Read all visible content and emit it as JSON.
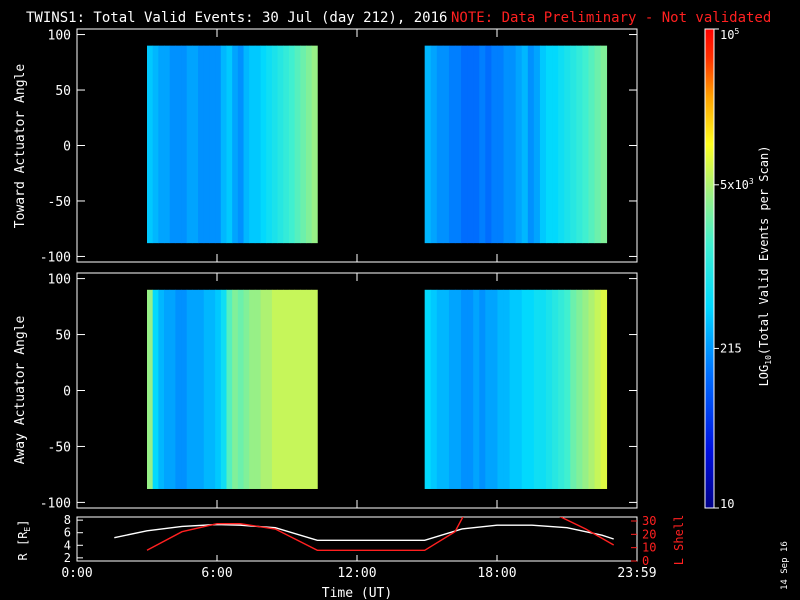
{
  "title": "TWINS1: Total Valid Events: 30 Jul (day 212), 2016",
  "note": "NOTE: Data Preliminary - Not validated",
  "date_stamp": "14 Sep 16",
  "colors": {
    "title": "#ffffff",
    "note": "#ff2020",
    "lshell": "#ff2020",
    "rdist": "#ffffff",
    "frame": "#ffffff"
  },
  "chart_data": [
    {
      "type": "heatmap",
      "ylabel": "Toward Actuator Angle",
      "ylim": [
        -105,
        105
      ],
      "yticks": [
        "100",
        "50",
        "0",
        "-50",
        "-100"
      ],
      "ytick_values": [
        100,
        50,
        0,
        -50,
        -100
      ],
      "x_range_hours": [
        0,
        24
      ],
      "angle_range": [
        -88,
        90
      ],
      "blocks_hours": [
        [
          3.0,
          10.3
        ],
        [
          14.9,
          22.7
        ]
      ],
      "scale": "log",
      "mean_log10_counts": [
        [
          2.6,
          2.5,
          2.4,
          2.4,
          2.3,
          2.3,
          2.3,
          2.4,
          2.4,
          2.3,
          2.3,
          2.3,
          2.3,
          2.5,
          2.6,
          2.4,
          2.3,
          2.5,
          2.6,
          2.6,
          2.7,
          2.8,
          2.9,
          3.0,
          3.1,
          3.2,
          3.3,
          3.4,
          3.5,
          3.6
        ],
        [
          2.5,
          2.4,
          2.3,
          2.3,
          2.2,
          2.2,
          2.1,
          2.1,
          2.1,
          2.2,
          2.1,
          2.2,
          2.2,
          2.3,
          2.3,
          2.4,
          2.5,
          2.3,
          2.4,
          2.6,
          2.7,
          2.7,
          2.8,
          2.9,
          3.0,
          3.1,
          3.2,
          3.3,
          3.4,
          3.5
        ]
      ]
    },
    {
      "type": "heatmap",
      "ylabel": "Away Actuator Angle",
      "ylim": [
        -105,
        105
      ],
      "yticks": [
        "100",
        "50",
        "0",
        "-50",
        "-100"
      ],
      "ytick_values": [
        100,
        50,
        0,
        -50,
        -100
      ],
      "x_range_hours": [
        0,
        24
      ],
      "angle_range": [
        -88,
        90
      ],
      "blocks_hours": [
        [
          3.0,
          10.3
        ],
        [
          14.9,
          22.7
        ]
      ],
      "scale": "log",
      "mean_log10_counts": [
        [
          3.6,
          2.7,
          2.5,
          2.4,
          2.4,
          2.3,
          2.3,
          2.4,
          2.4,
          2.4,
          2.5,
          2.5,
          2.6,
          2.8,
          3.3,
          3.5,
          3.4,
          3.5,
          3.6,
          3.6,
          3.7,
          3.7,
          3.8,
          3.8,
          3.8,
          3.8,
          3.8,
          3.8,
          3.8,
          3.8
        ],
        [
          2.7,
          2.6,
          2.5,
          2.5,
          2.4,
          2.4,
          2.3,
          2.3,
          2.4,
          2.3,
          2.4,
          2.4,
          2.5,
          2.5,
          2.6,
          2.6,
          2.7,
          2.7,
          2.8,
          2.8,
          2.9,
          3.0,
          3.1,
          3.2,
          3.4,
          3.5,
          3.6,
          3.7,
          3.8,
          3.9
        ]
      ]
    },
    {
      "type": "line",
      "xlabel": "Time (UT)",
      "xticks": [
        "0:00",
        "6:00",
        "12:00",
        "18:00",
        "23:59"
      ],
      "xtick_hours": [
        0,
        6,
        12,
        18,
        24
      ],
      "left_axis": {
        "label": "R [R",
        "label_sub": "E",
        "label_end": "]",
        "ticks": [
          "8",
          "6",
          "4",
          "2"
        ],
        "tick_values": [
          8,
          6,
          4,
          2
        ],
        "ylim": [
          1.5,
          8.5
        ]
      },
      "right_axis": {
        "label": "L Shell",
        "ticks": [
          "30",
          "20",
          "10",
          "0"
        ],
        "tick_values": [
          30,
          20,
          10,
          0
        ],
        "ylim": [
          0,
          33
        ]
      },
      "series": [
        {
          "axis": "left",
          "color": "#ffffff",
          "x": [
            1.6,
            3.0,
            4.5,
            6.0,
            7.0,
            8.5,
            10.3,
            12.0,
            14.9,
            16.5,
            18.0,
            19.5,
            21.0,
            22.5,
            23.0
          ],
          "y": [
            5.2,
            6.3,
            7.0,
            7.3,
            7.2,
            6.8,
            4.8,
            4.8,
            4.8,
            6.6,
            7.2,
            7.2,
            6.8,
            5.6,
            5.0
          ]
        },
        {
          "axis": "right",
          "color": "#ff2020",
          "x": [
            3.0,
            4.5,
            6.0,
            7.0,
            8.5,
            10.3,
            12.0,
            14.9,
            16.2,
            16.6,
            null,
            20.5,
            21.8,
            23.0
          ],
          "y": [
            8.0,
            22.0,
            28.0,
            28.0,
            24.0,
            8.0,
            8.0,
            8.0,
            22.0,
            35.0,
            null,
            35.0,
            24.0,
            12.0
          ]
        }
      ]
    }
  ],
  "colorbar": {
    "label": "LOG",
    "label_sub": "10",
    "label_rest": "(Total Valid Events per Scan)",
    "scale": "log",
    "range": [
      10,
      100000
    ],
    "tick_values": [
      10,
      215,
      5000,
      100000
    ],
    "ticks": [
      {
        "base": "10",
        "exp": "",
        "value": 10
      },
      {
        "base": "215",
        "exp": "",
        "value": 215
      },
      {
        "base": "5x10",
        "exp": "3",
        "value": 5000
      },
      {
        "base": "10",
        "exp": "5",
        "value": 100000
      }
    ]
  }
}
